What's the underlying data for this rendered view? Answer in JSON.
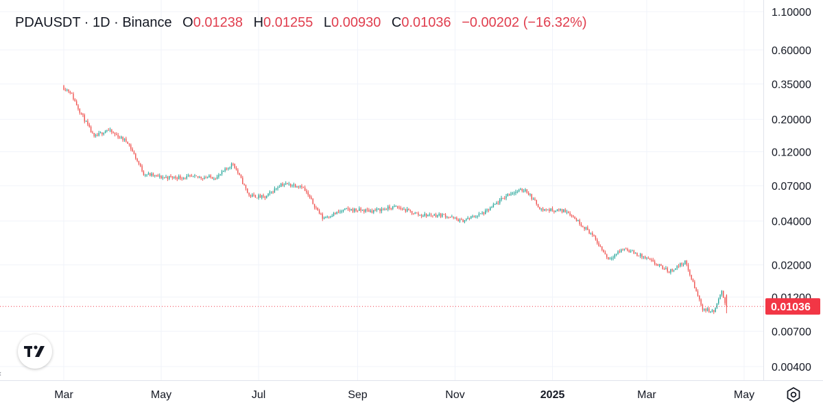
{
  "legend": {
    "symbol": "PDAUSDT · 1D · Binance",
    "o_label": "O",
    "o_value": "0.01238",
    "h_label": "H",
    "h_value": "0.01255",
    "l_label": "L",
    "l_value": "0.00930",
    "c_label": "C",
    "c_value": "0.01036",
    "change": "−0.00202 (−16.32%)"
  },
  "colors": {
    "up": "#26a69a",
    "down": "#ef5350",
    "grid": "#f0f3fa",
    "last_price_bg": "#f23645"
  },
  "icons": {
    "logo": "tradingview-logo-icon",
    "settings": "gear-icon"
  },
  "chart_data": {
    "type": "candlestick",
    "y_scale": "log",
    "y_tick_labels": [
      "1.10000",
      "0.60000",
      "0.35000",
      "0.20000",
      "0.12000",
      "0.07000",
      "0.04000",
      "0.02000",
      "0.01200",
      "0.00700",
      "0.00400"
    ],
    "y_tick_values": [
      1.1,
      0.6,
      0.35,
      0.2,
      0.12,
      0.07,
      0.04,
      0.02,
      0.012,
      0.007,
      0.004
    ],
    "x_tick_labels": [
      "Mar",
      "May",
      "Jul",
      "Sep",
      "Nov",
      "2025",
      "Mar",
      "May"
    ],
    "x_tick_dates": [
      "2024-03-01",
      "2024-05-01",
      "2024-07-01",
      "2024-09-01",
      "2024-11-01",
      "2025-01-01",
      "2025-03-01",
      "2025-05-01"
    ],
    "last_price": 0.01036,
    "last_price_label": "0.01036",
    "series_anchors": [
      {
        "date": "2024-03-01",
        "close": 0.33
      },
      {
        "date": "2024-03-05",
        "close": 0.31
      },
      {
        "date": "2024-03-10",
        "close": 0.24
      },
      {
        "date": "2024-03-20",
        "close": 0.15
      },
      {
        "date": "2024-03-28",
        "close": 0.17
      },
      {
        "date": "2024-04-10",
        "close": 0.14
      },
      {
        "date": "2024-04-20",
        "close": 0.085
      },
      {
        "date": "2024-05-01",
        "close": 0.08
      },
      {
        "date": "2024-05-20",
        "close": 0.08
      },
      {
        "date": "2024-06-05",
        "close": 0.08
      },
      {
        "date": "2024-06-15",
        "close": 0.1
      },
      {
        "date": "2024-06-25",
        "close": 0.06
      },
      {
        "date": "2024-07-05",
        "close": 0.058
      },
      {
        "date": "2024-07-15",
        "close": 0.072
      },
      {
        "date": "2024-07-28",
        "close": 0.07
      },
      {
        "date": "2024-08-10",
        "close": 0.042
      },
      {
        "date": "2024-08-25",
        "close": 0.048
      },
      {
        "date": "2024-09-10",
        "close": 0.047
      },
      {
        "date": "2024-09-25",
        "close": 0.05
      },
      {
        "date": "2024-10-10",
        "close": 0.044
      },
      {
        "date": "2024-10-25",
        "close": 0.044
      },
      {
        "date": "2024-11-05",
        "close": 0.04
      },
      {
        "date": "2024-11-20",
        "close": 0.046
      },
      {
        "date": "2024-12-05",
        "close": 0.062
      },
      {
        "date": "2024-12-15",
        "close": 0.066
      },
      {
        "date": "2024-12-25",
        "close": 0.048
      },
      {
        "date": "2025-01-10",
        "close": 0.047
      },
      {
        "date": "2025-01-25",
        "close": 0.033
      },
      {
        "date": "2025-02-05",
        "close": 0.022
      },
      {
        "date": "2025-02-15",
        "close": 0.026
      },
      {
        "date": "2025-03-01",
        "close": 0.022
      },
      {
        "date": "2025-03-15",
        "close": 0.018
      },
      {
        "date": "2025-03-25",
        "close": 0.021
      },
      {
        "date": "2025-04-05",
        "close": 0.01
      },
      {
        "date": "2025-04-12",
        "close": 0.0095
      },
      {
        "date": "2025-04-17",
        "close": 0.013
      },
      {
        "date": "2025-04-20",
        "close": 0.01036
      }
    ]
  }
}
